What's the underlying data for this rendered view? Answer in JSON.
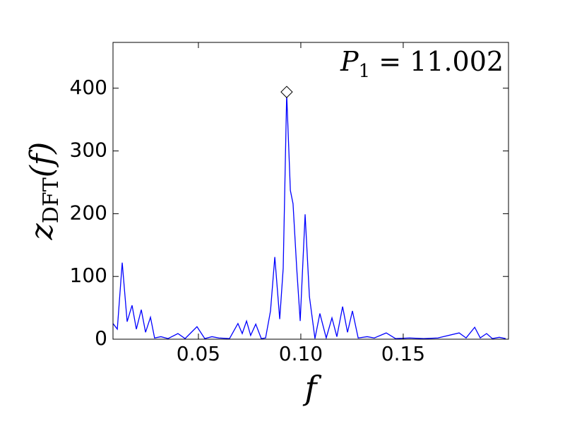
{
  "chart_data": {
    "type": "line",
    "annotation": {
      "base": "P",
      "sub": "1",
      "tail": " = 11.002"
    },
    "x_label": "f",
    "y_label": {
      "base": "z",
      "sub": "DFT",
      "tail": "(f)"
    },
    "x": [
      0.0083,
      0.0104,
      0.0128,
      0.0152,
      0.0176,
      0.0197,
      0.0221,
      0.0242,
      0.0266,
      0.0286,
      0.0317,
      0.0352,
      0.04,
      0.0435,
      0.0493,
      0.0531,
      0.0566,
      0.06,
      0.0652,
      0.0693,
      0.0714,
      0.0735,
      0.0755,
      0.078,
      0.0807,
      0.0828,
      0.0852,
      0.0873,
      0.0897,
      0.0914,
      0.0931,
      0.0949,
      0.0962,
      0.098,
      0.0997,
      0.1021,
      0.1042,
      0.1069,
      0.1093,
      0.1124,
      0.1152,
      0.1176,
      0.1204,
      0.1228,
      0.1252,
      0.128,
      0.1324,
      0.1359,
      0.1417,
      0.1462,
      0.1531,
      0.16,
      0.1669,
      0.1773,
      0.1807,
      0.1849,
      0.1876,
      0.1907,
      0.1935,
      0.1969,
      0.2
    ],
    "series": [
      {
        "color": "#0000ff",
        "values": [
          25,
          16,
          122,
          28,
          54,
          16,
          47,
          11,
          35,
          2,
          4,
          1,
          9,
          1,
          20,
          1,
          4,
          2,
          1,
          25,
          9,
          29,
          6,
          24,
          1,
          2,
          45,
          131,
          32,
          113,
          391,
          237,
          216,
          113,
          29,
          199,
          68,
          1,
          41,
          2,
          34,
          4,
          52,
          11,
          45,
          2,
          4,
          2,
          10,
          1,
          2,
          1,
          2,
          10,
          2,
          19,
          2,
          9,
          1,
          3,
          1
        ]
      }
    ],
    "marker": {
      "x": 0.0931,
      "y": 394
    },
    "xlim": [
      0.0083,
      0.2014
    ],
    "ylim": [
      0,
      473
    ],
    "xticks": [
      0.05,
      {
        "value": 0.1,
        "label": "0.10"
      },
      0.15
    ],
    "yticks": [
      0,
      100,
      200,
      300,
      400
    ]
  }
}
